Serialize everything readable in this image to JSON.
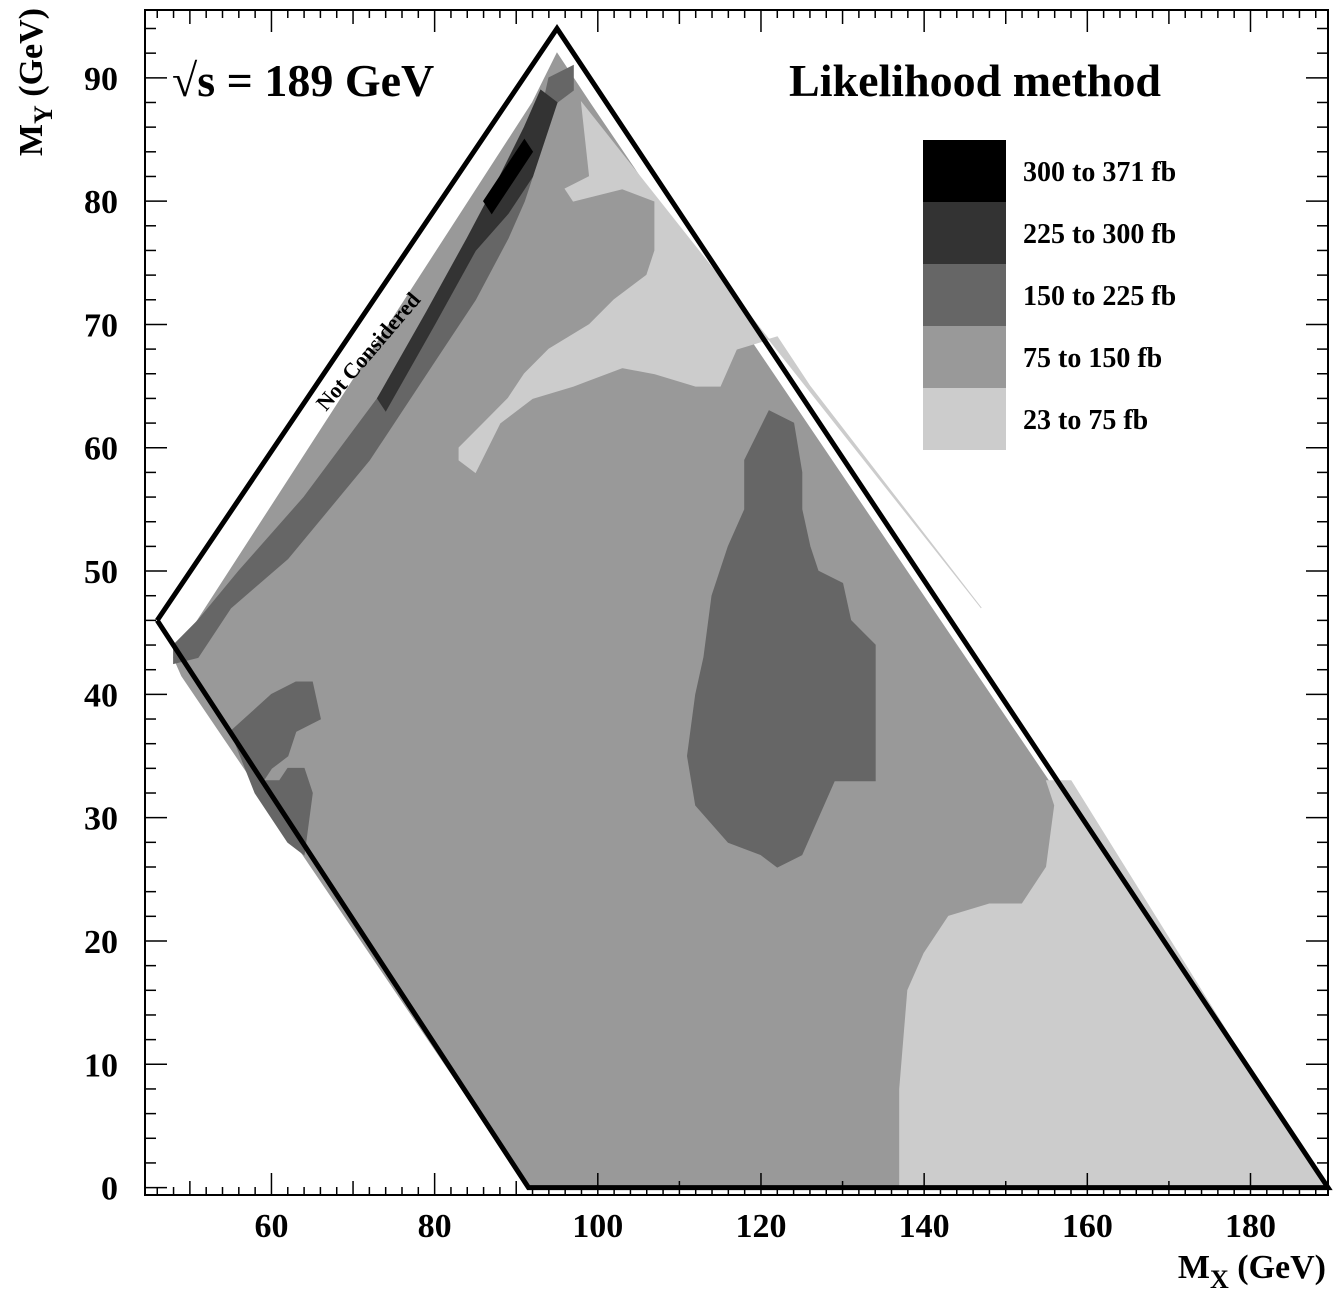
{
  "chart_data": {
    "type": "heatmap",
    "title": "Likelihood method",
    "energy_label": "√s = 189 GeV",
    "xlabel": "M",
    "xlabel_sub": "X",
    "xlabel_unit": " (GeV)",
    "ylabel": "M",
    "ylabel_sub": "Y",
    "ylabel_unit": " (GeV)",
    "xlim": [
      44.5,
      189.5
    ],
    "ylim": [
      -0.6,
      95.5
    ],
    "x_ticks": [
      60,
      80,
      100,
      120,
      140,
      160,
      180
    ],
    "y_ticks": [
      0,
      10,
      20,
      30,
      40,
      50,
      60,
      70,
      80,
      90
    ],
    "boundary": [
      [
        46,
        46
      ],
      [
        95,
        94
      ],
      [
        189.5,
        0
      ],
      [
        91.5,
        0
      ],
      [
        46,
        46
      ]
    ],
    "not_considered_label": "Not Considered",
    "legend": [
      {
        "label": "300 to 371 fb",
        "color": "#000000"
      },
      {
        "label": "225 to 300 fb",
        "color": "#333333"
      },
      {
        "label": "150 to 225 fb",
        "color": "#666666"
      },
      {
        "label": "75 to 150 fb",
        "color": "#999999"
      },
      {
        "label": "23 to 75 fb",
        "color": "#cccccc"
      }
    ],
    "regions": [
      {
        "level": "75 to 150 fb",
        "color": "#999999",
        "polygon": [
          [
            48,
            43
          ],
          [
            92,
            88
          ],
          [
            95,
            92
          ],
          [
            99,
            88
          ],
          [
            189,
            0
          ],
          [
            91.5,
            0
          ],
          [
            49,
            41.5
          ]
        ]
      },
      {
        "level": "23 to 75 fb",
        "color": "#cccccc",
        "polygon": [
          [
            98,
            88
          ],
          [
            99,
            82
          ],
          [
            96,
            81
          ],
          [
            97,
            80
          ],
          [
            103,
            81
          ],
          [
            107,
            80
          ],
          [
            107,
            76
          ],
          [
            106,
            74
          ],
          [
            102,
            72
          ],
          [
            99,
            70
          ],
          [
            94,
            68
          ],
          [
            91,
            66
          ],
          [
            89,
            64
          ],
          [
            86,
            62
          ],
          [
            83,
            60
          ],
          [
            83,
            59
          ],
          [
            85,
            58
          ],
          [
            88,
            62
          ],
          [
            92,
            64
          ],
          [
            97,
            65
          ],
          [
            103,
            66.5
          ],
          [
            107,
            66
          ],
          [
            112,
            65
          ],
          [
            115,
            65
          ],
          [
            117,
            68
          ],
          [
            122,
            69
          ],
          [
            126,
            65
          ],
          [
            147,
            47
          ],
          [
            98,
            88
          ]
        ]
      },
      {
        "level": "23 to 75 fb",
        "color": "#cccccc",
        "polygon": [
          [
            137,
            0
          ],
          [
            137,
            8
          ],
          [
            138,
            16
          ],
          [
            140,
            19
          ],
          [
            143,
            22
          ],
          [
            148,
            23
          ],
          [
            152,
            23
          ],
          [
            155,
            26
          ],
          [
            156,
            31
          ],
          [
            155,
            33
          ],
          [
            158,
            33
          ],
          [
            189,
            0
          ]
        ]
      },
      {
        "level": "150 to 225 fb",
        "color": "#666666",
        "polygon": [
          [
            90,
            83
          ],
          [
            93,
            87
          ],
          [
            94,
            90
          ],
          [
            97,
            91
          ],
          [
            97,
            89
          ],
          [
            95,
            88
          ],
          [
            93,
            85
          ],
          [
            92,
            82
          ],
          [
            91,
            80
          ],
          [
            89,
            77
          ],
          [
            85,
            72
          ],
          [
            80,
            67
          ],
          [
            72,
            59
          ],
          [
            62,
            51
          ],
          [
            55,
            47
          ],
          [
            51,
            43
          ],
          [
            48,
            42.5
          ],
          [
            48,
            44
          ],
          [
            51,
            46
          ],
          [
            56,
            50
          ],
          [
            64,
            56
          ],
          [
            73,
            64
          ],
          [
            81,
            72
          ],
          [
            86,
            78
          ],
          [
            90,
            83
          ]
        ]
      },
      {
        "level": "225 to 300 fb",
        "color": "#333333",
        "polygon": [
          [
            85,
            76
          ],
          [
            89,
            79
          ],
          [
            92,
            82
          ],
          [
            94,
            86
          ],
          [
            95,
            88
          ],
          [
            93,
            89
          ],
          [
            91,
            86
          ],
          [
            88,
            82
          ],
          [
            84,
            77
          ],
          [
            79,
            71
          ],
          [
            73,
            64
          ],
          [
            74,
            63
          ],
          [
            80,
            70
          ],
          [
            85,
            76
          ]
        ]
      },
      {
        "level": "300 to 371 fb",
        "color": "#000000",
        "polygon": [
          [
            87,
            79
          ],
          [
            90,
            82
          ],
          [
            92,
            84
          ],
          [
            91,
            85
          ],
          [
            89,
            83
          ],
          [
            86,
            80
          ],
          [
            87,
            79
          ]
        ]
      },
      {
        "level": "150 to 225 fb",
        "color": "#666666",
        "polygon": [
          [
            121,
            63
          ],
          [
            124,
            62
          ],
          [
            125,
            58
          ],
          [
            125,
            55
          ],
          [
            126,
            52
          ],
          [
            127,
            50
          ],
          [
            130,
            49
          ],
          [
            131,
            46
          ],
          [
            134,
            44
          ],
          [
            134,
            40
          ],
          [
            134,
            35
          ],
          [
            134,
            33
          ],
          [
            129,
            33
          ],
          [
            127,
            30
          ],
          [
            125,
            27
          ],
          [
            122,
            26
          ],
          [
            120,
            27
          ],
          [
            116,
            28
          ],
          [
            112,
            31
          ],
          [
            111,
            35
          ],
          [
            112,
            40
          ],
          [
            113,
            43
          ],
          [
            114,
            48
          ],
          [
            116,
            52
          ],
          [
            118,
            55
          ],
          [
            118,
            59
          ],
          [
            121,
            63
          ]
        ]
      },
      {
        "level": "150 to 225 fb",
        "color": "#666666",
        "polygon": [
          [
            55,
            37
          ],
          [
            60,
            40
          ],
          [
            63,
            41
          ],
          [
            65,
            41
          ],
          [
            66,
            38
          ],
          [
            63,
            37
          ],
          [
            62,
            35
          ],
          [
            60,
            34
          ],
          [
            59,
            33
          ],
          [
            61,
            33
          ],
          [
            62,
            34
          ],
          [
            64,
            34
          ],
          [
            65,
            32
          ],
          [
            64,
            27
          ],
          [
            62,
            28
          ],
          [
            58,
            32
          ],
          [
            55,
            37
          ]
        ]
      }
    ]
  }
}
